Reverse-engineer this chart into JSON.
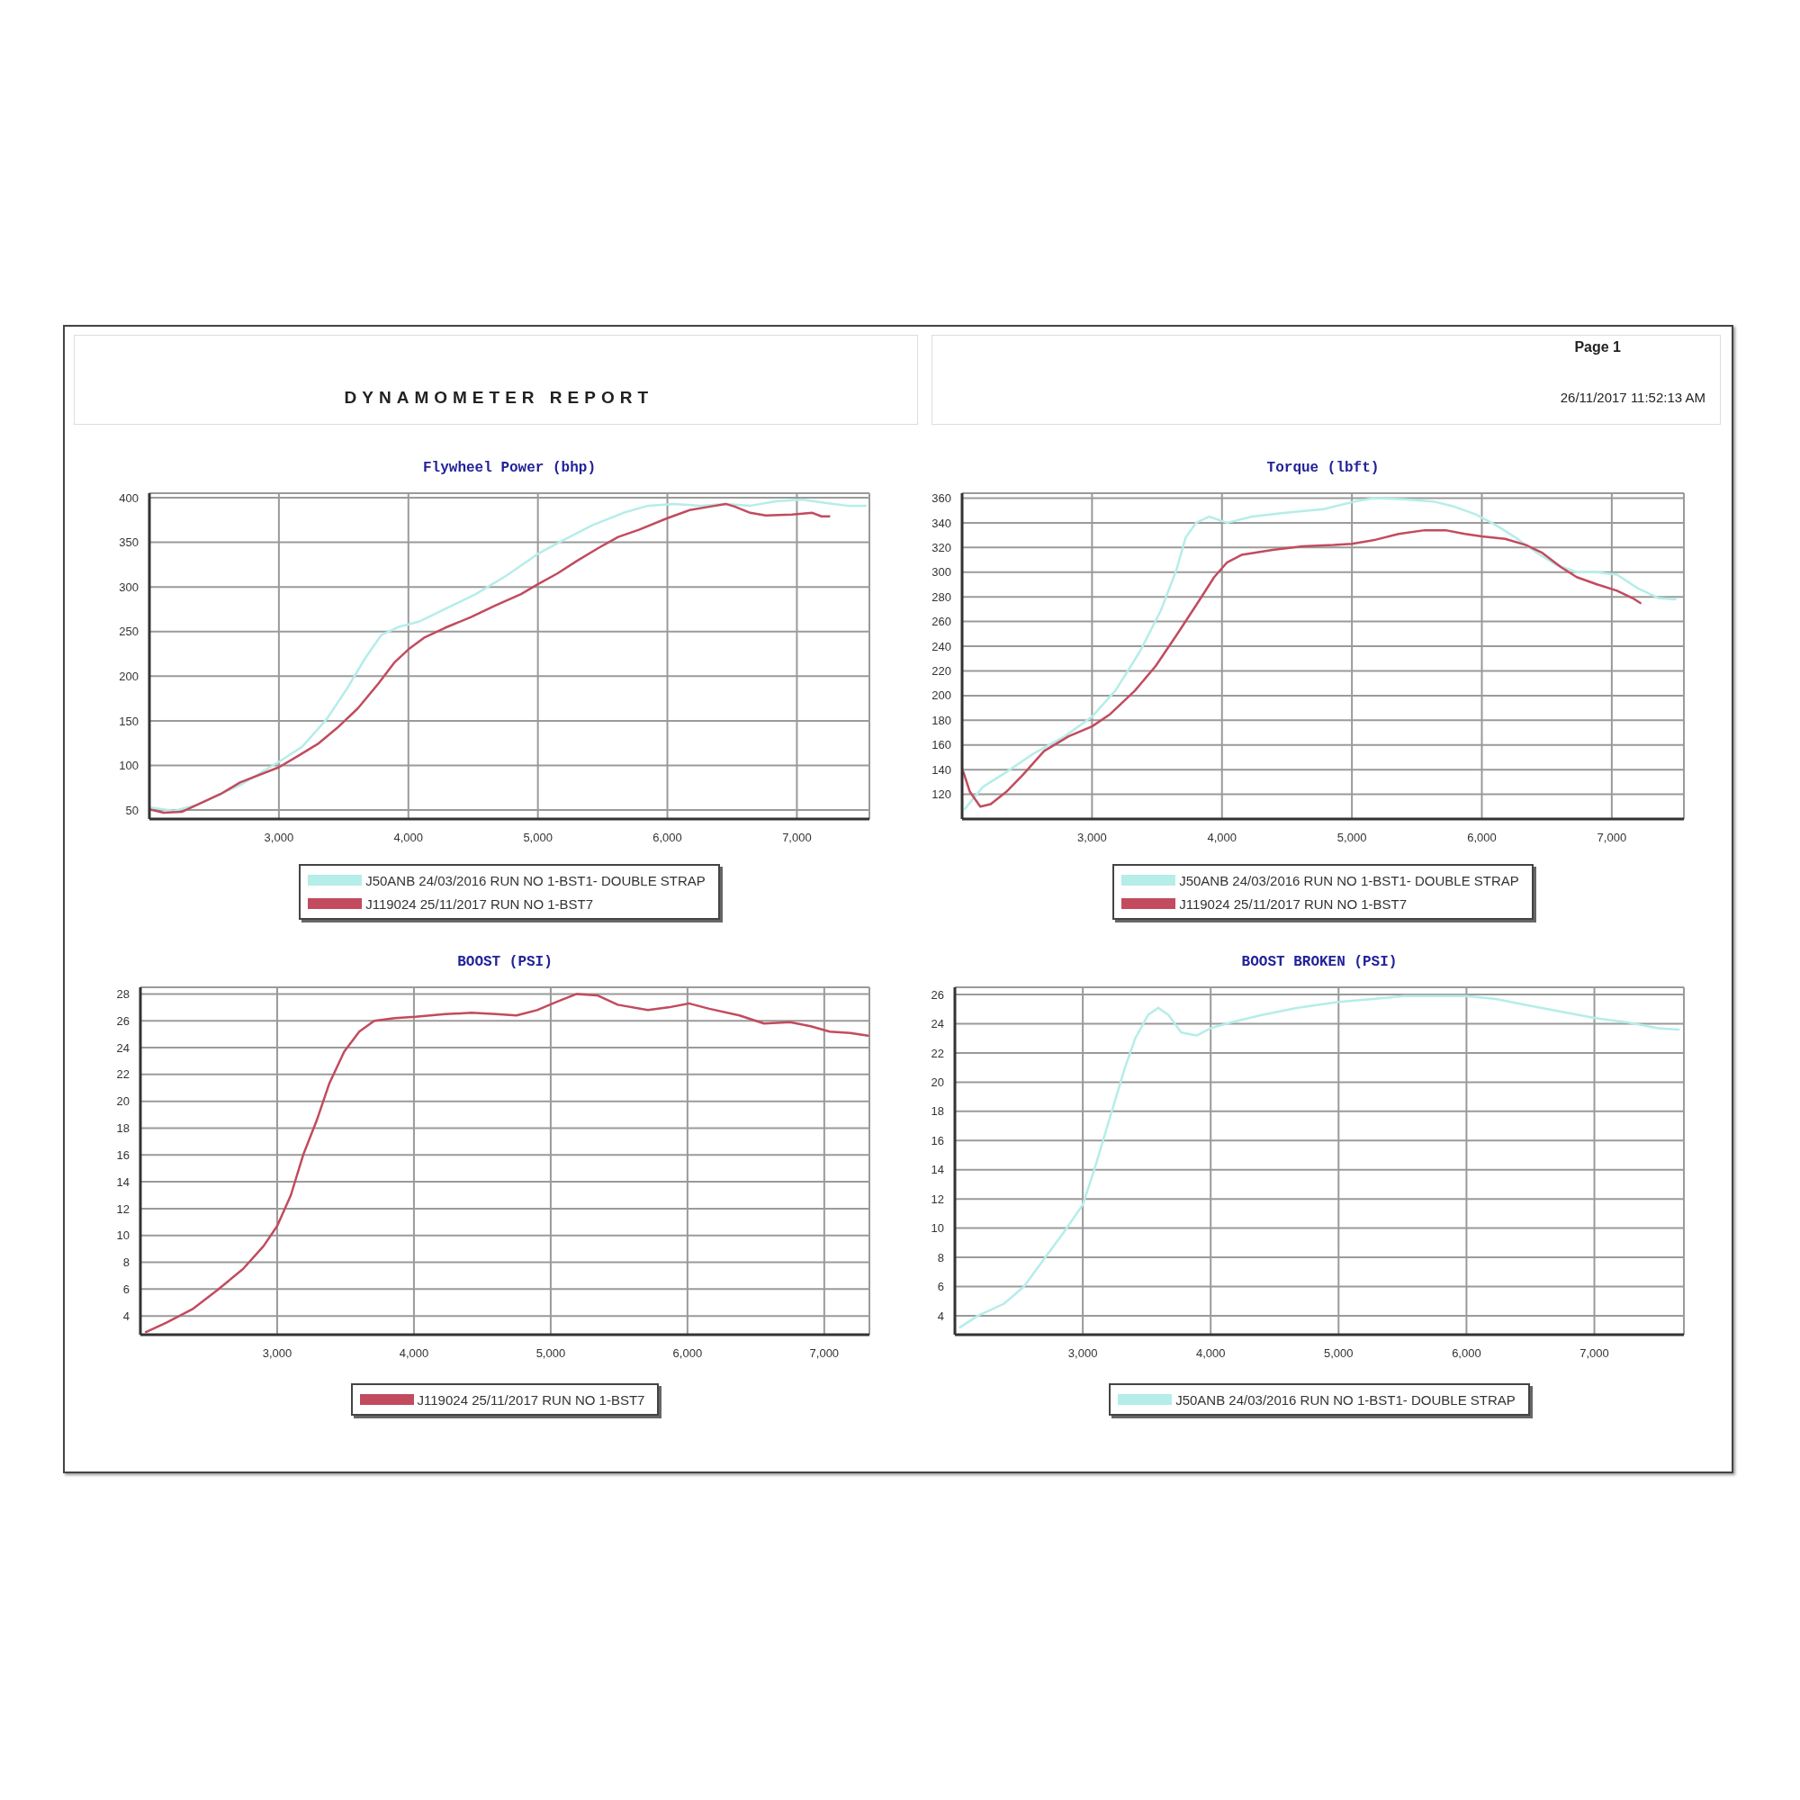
{
  "chart_data": [
    {
      "type": "other",
      "title": "DYNAMOMETER REPORT",
      "annotations": [
        "Page 1",
        "26/11/2017 11:52:13 AM"
      ]
    },
    {
      "type": "line",
      "title": "Flywheel Power (bhp)",
      "xlim": [
        2000,
        7560
      ],
      "xticks": [
        {
          "value": 3000,
          "label": "3,000"
        },
        {
          "value": 4000,
          "label": "4,000"
        },
        {
          "value": 5000,
          "label": "5,000"
        },
        {
          "value": 6000,
          "label": "6,000"
        },
        {
          "value": 7000,
          "label": "7,000"
        }
      ],
      "ylim": [
        40,
        405
      ],
      "yticks": [
        50,
        100,
        150,
        200,
        250,
        300,
        350,
        400
      ],
      "grid": true,
      "legend": "bottom",
      "series": [
        {
          "name": "J50ANB 24/03/2016 RUN NO 1-BST1- DOUBLE STRAP",
          "color": "#b5ede9",
          "x": [
            2000,
            2190,
            2370,
            2700,
            3000,
            3180,
            3370,
            3530,
            3670,
            3790,
            3920,
            4080,
            4280,
            4520,
            4750,
            5000,
            5190,
            5420,
            5660,
            5850,
            6050,
            6250,
            6450,
            6640,
            6840,
            7040,
            7230,
            7390,
            7530
          ],
          "values": [
            53,
            49,
            56,
            78,
            104,
            121,
            152,
            187,
            221,
            246,
            255,
            261,
            275,
            292,
            312,
            337,
            352,
            369,
            383,
            391,
            393,
            391,
            393,
            391,
            396,
            398,
            394,
            391,
            391
          ]
        },
        {
          "name": "J119024 25/11/2017 RUN NO 1-BST7",
          "color": "#c24b5e",
          "x": [
            2000,
            2110,
            2250,
            2370,
            2550,
            2700,
            3000,
            3140,
            3300,
            3450,
            3610,
            3770,
            3890,
            4000,
            4120,
            4280,
            4480,
            4670,
            4870,
            5000,
            5150,
            5300,
            5460,
            5620,
            5780,
            6000,
            6170,
            6330,
            6450,
            6520,
            6640,
            6760,
            6960,
            7120,
            7190,
            7250
          ],
          "values": [
            51,
            47,
            48,
            56,
            68,
            81,
            98,
            110,
            124,
            142,
            164,
            192,
            215,
            230,
            243,
            254,
            266,
            279,
            292,
            303,
            315,
            329,
            343,
            356,
            364,
            377,
            386,
            390,
            393,
            390,
            383,
            380,
            381,
            383,
            379,
            379
          ]
        }
      ]
    },
    {
      "type": "line",
      "title": "Torque (lbft)",
      "xlim": [
        2000,
        7555
      ],
      "xticks": [
        {
          "value": 3000,
          "label": "3,000"
        },
        {
          "value": 4000,
          "label": "4,000"
        },
        {
          "value": 5000,
          "label": "5,000"
        },
        {
          "value": 6000,
          "label": "6,000"
        },
        {
          "value": 7000,
          "label": "7,000"
        }
      ],
      "ylim": [
        100,
        364
      ],
      "yticks": [
        120,
        140,
        160,
        180,
        200,
        220,
        240,
        260,
        280,
        300,
        320,
        340,
        360
      ],
      "grid": true,
      "legend": "bottom",
      "series": [
        {
          "name": "J50ANB 24/03/2016 RUN NO 1-BST1- DOUBLE STRAP",
          "color": "#b5ede9",
          "x": [
            2020,
            2160,
            2340,
            2550,
            2790,
            3000,
            3180,
            3370,
            3530,
            3650,
            3720,
            3800,
            3900,
            4040,
            4230,
            4470,
            4780,
            5010,
            5170,
            5400,
            5640,
            5790,
            5950,
            6110,
            6260,
            6420,
            6570,
            6730,
            6890,
            7040,
            7200,
            7360,
            7490
          ],
          "values": [
            108,
            126,
            138,
            153,
            167,
            183,
            204,
            236,
            269,
            302,
            328,
            340,
            345,
            340,
            345,
            348,
            351,
            357,
            360,
            359,
            357,
            353,
            347,
            338,
            328,
            316,
            306,
            300,
            300,
            298,
            287,
            279,
            278
          ]
        },
        {
          "name": "J119024 25/11/2017 RUN NO 1-BST7",
          "color": "#c24b5e",
          "x": [
            2010,
            2060,
            2140,
            2220,
            2340,
            2470,
            2630,
            2820,
            3000,
            3140,
            3330,
            3490,
            3650,
            3800,
            3940,
            4040,
            4150,
            4390,
            4620,
            4860,
            5000,
            5170,
            5360,
            5560,
            5720,
            5870,
            6000,
            6180,
            6340,
            6460,
            6610,
            6730,
            6890,
            7040,
            7160,
            7220
          ],
          "values": [
            138,
            122,
            110,
            112,
            122,
            136,
            155,
            167,
            175,
            185,
            204,
            224,
            249,
            273,
            296,
            308,
            314,
            318,
            321,
            322,
            323,
            326,
            331,
            334,
            334,
            331,
            329,
            327,
            322,
            316,
            304,
            296,
            290,
            285,
            279,
            275
          ]
        }
      ]
    },
    {
      "type": "line",
      "title": "BOOST (PSI)",
      "xlim": [
        2000,
        7330
      ],
      "xticks": [
        {
          "value": 3000,
          "label": "3,000"
        },
        {
          "value": 4000,
          "label": "4,000"
        },
        {
          "value": 5000,
          "label": "5,000"
        },
        {
          "value": 6000,
          "label": "6,000"
        },
        {
          "value": 7000,
          "label": "7,000"
        }
      ],
      "ylim": [
        2.6,
        28.5
      ],
      "yticks": [
        4,
        6,
        8,
        10,
        12,
        14,
        16,
        18,
        20,
        22,
        24,
        26,
        28
      ],
      "grid": true,
      "legend": "bottom",
      "series": [
        {
          "name": "J119024 25/11/2017 RUN NO 1-BST7",
          "color": "#c24b5e",
          "x": [
            2040,
            2190,
            2380,
            2560,
            2750,
            2900,
            3000,
            3100,
            3190,
            3290,
            3380,
            3490,
            3600,
            3710,
            3860,
            4010,
            4230,
            4420,
            4600,
            4750,
            4900,
            5040,
            5190,
            5340,
            5490,
            5710,
            5860,
            6010,
            6160,
            6380,
            6560,
            6750,
            6900,
            7040,
            7190,
            7320
          ],
          "values": [
            2.8,
            3.5,
            4.5,
            5.9,
            7.5,
            9.2,
            10.7,
            13.0,
            16.0,
            18.6,
            21.3,
            23.7,
            25.2,
            26.0,
            26.2,
            26.3,
            26.5,
            26.6,
            26.5,
            26.4,
            26.8,
            27.4,
            28.0,
            27.9,
            27.2,
            26.8,
            27.0,
            27.3,
            26.9,
            26.4,
            25.8,
            25.9,
            25.6,
            25.2,
            25.1,
            24.9
          ]
        }
      ]
    },
    {
      "type": "line",
      "title": "BOOST BROKEN (PSI)",
      "xlim": [
        2000,
        7700
      ],
      "xticks": [
        {
          "value": 3000,
          "label": "3,000"
        },
        {
          "value": 4000,
          "label": "4,000"
        },
        {
          "value": 5000,
          "label": "5,000"
        },
        {
          "value": 6000,
          "label": "6,000"
        },
        {
          "value": 7000,
          "label": "7,000"
        }
      ],
      "ylim": [
        2.7,
        26.5
      ],
      "yticks": [
        4,
        6,
        8,
        10,
        12,
        14,
        16,
        18,
        20,
        22,
        24,
        26
      ],
      "grid": true,
      "legend": "bottom",
      "series": [
        {
          "name": "J50ANB 24/03/2016 RUN NO 1-BST1- DOUBLE STRAP",
          "color": "#b5ede9",
          "x": [
            2040,
            2180,
            2380,
            2540,
            2690,
            2850,
            3000,
            3090,
            3210,
            3330,
            3410,
            3510,
            3590,
            3670,
            3770,
            3890,
            4000,
            4160,
            4400,
            4680,
            5000,
            5270,
            5510,
            5750,
            6000,
            6230,
            6460,
            6700,
            7000,
            7260,
            7500,
            7660
          ],
          "values": [
            3.2,
            4.0,
            4.8,
            6.0,
            7.8,
            9.7,
            11.6,
            14.0,
            17.5,
            21.0,
            23.0,
            24.6,
            25.1,
            24.6,
            23.4,
            23.2,
            23.7,
            24.1,
            24.6,
            25.1,
            25.5,
            25.7,
            25.9,
            25.9,
            25.9,
            25.7,
            25.3,
            24.9,
            24.4,
            24.1,
            23.7,
            23.6
          ]
        }
      ]
    }
  ]
}
